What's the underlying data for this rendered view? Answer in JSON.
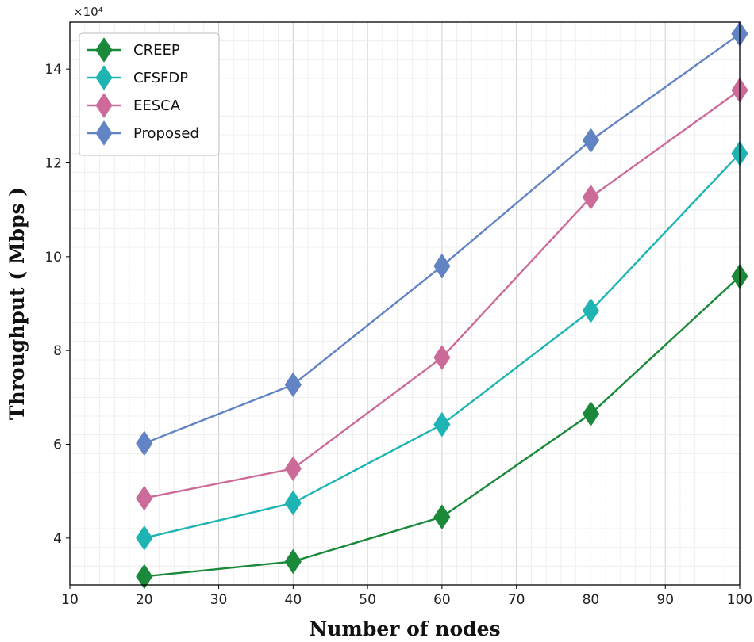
{
  "chart_data": {
    "type": "line",
    "title": "",
    "xlabel": "Number of nodes",
    "ylabel": "Throughput ( Mbps )",
    "y_multiplier_label": "×10⁴",
    "xlim": [
      10,
      100
    ],
    "ylim": [
      3,
      15
    ],
    "xticks": [
      10,
      20,
      30,
      40,
      50,
      60,
      70,
      80,
      90,
      100
    ],
    "yticks": [
      4,
      6,
      8,
      10,
      12,
      14
    ],
    "grid": true,
    "legend_position": "top-left",
    "x": [
      20,
      40,
      60,
      80,
      100
    ],
    "series": [
      {
        "name": "CREEP",
        "color": "#1a8a3a",
        "values": [
          3.18,
          3.5,
          4.45,
          6.65,
          9.58
        ]
      },
      {
        "name": "CFSFDP",
        "color": "#1fb4b4",
        "values": [
          4.0,
          4.75,
          6.42,
          8.85,
          12.2
        ]
      },
      {
        "name": "EESCA",
        "color": "#cc6b9a",
        "values": [
          4.85,
          5.48,
          7.85,
          11.27,
          13.55
        ]
      },
      {
        "name": "Proposed",
        "color": "#6283c4",
        "values": [
          6.02,
          7.27,
          9.8,
          12.48,
          14.75
        ]
      }
    ]
  }
}
